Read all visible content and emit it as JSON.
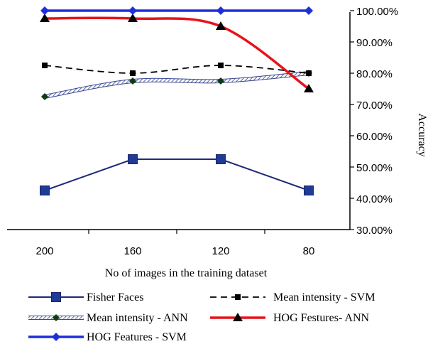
{
  "chart_data": {
    "type": "line",
    "title": "",
    "xlabel": "No of images in the training dataset",
    "ylabel": "Accuracy",
    "categories": [
      "200",
      "160",
      "120",
      "80"
    ],
    "y_axis_side": "right",
    "y_tick_labels": [
      "30.00%",
      "40.00%",
      "50.00%",
      "60.00%",
      "70.00%",
      "80.00%",
      "90.00%",
      "100.00%"
    ],
    "y_ticks": [
      30,
      40,
      50,
      60,
      70,
      80,
      90,
      100
    ],
    "ylim": [
      30,
      100
    ],
    "grid": false,
    "legend_position": "bottom",
    "series": [
      {
        "name": "Fisher Faces",
        "values": [
          42.5,
          52.5,
          52.5,
          42.5
        ],
        "color": "#1f2a7a",
        "line": "solid",
        "marker": "square",
        "smooth": false
      },
      {
        "name": "Mean intensity - SVM",
        "values": [
          82.5,
          80.0,
          82.5,
          80.0
        ],
        "color": "#000000",
        "line": "dashed",
        "marker": "square-small",
        "smooth": true
      },
      {
        "name": "Mean intensity - ANN",
        "values": [
          72.5,
          77.5,
          77.5,
          80.0
        ],
        "color": "#6a77b0",
        "line": "hatched",
        "marker": "diamond-dark",
        "smooth": true
      },
      {
        "name": "HOG Festures- ANN",
        "values": [
          97.5,
          97.5,
          95.0,
          75.0
        ],
        "color": "#e8121a",
        "line": "solid-thick",
        "marker": "triangle",
        "smooth": true
      },
      {
        "name": "HOG Features - SVM",
        "values": [
          100.0,
          100.0,
          100.0,
          100.0
        ],
        "color": "#1f2fd8",
        "line": "solid-thick",
        "marker": "diamond",
        "smooth": false
      }
    ]
  }
}
